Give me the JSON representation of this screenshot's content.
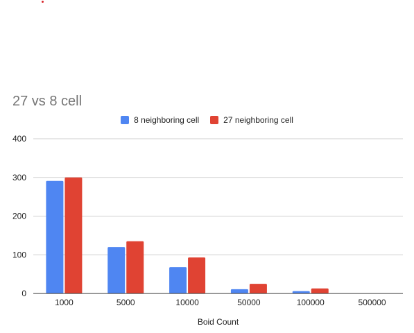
{
  "chart_data": {
    "type": "bar",
    "title": "27 vs 8 cell",
    "xlabel": "Boid Count",
    "ylabel": "",
    "categories": [
      "1000",
      "5000",
      "10000",
      "50000",
      "100000",
      "500000"
    ],
    "series": [
      {
        "name": "8 neighboring cell",
        "color": "#4f86f2",
        "values": [
          291,
          120,
          68,
          11,
          6,
          0
        ]
      },
      {
        "name": "27 neighboring cell",
        "color": "#e04333",
        "values": [
          300,
          135,
          93,
          25,
          13,
          0
        ]
      }
    ],
    "ylim": [
      0,
      400
    ],
    "yticks": [
      "0",
      "100",
      "200",
      "300",
      "400"
    ],
    "grid": true,
    "legend_position": "top"
  },
  "colors": {
    "accent_dot": "#d8262b",
    "gridline": "#cfcfcf",
    "axis": "#333333",
    "title": "#757575"
  }
}
